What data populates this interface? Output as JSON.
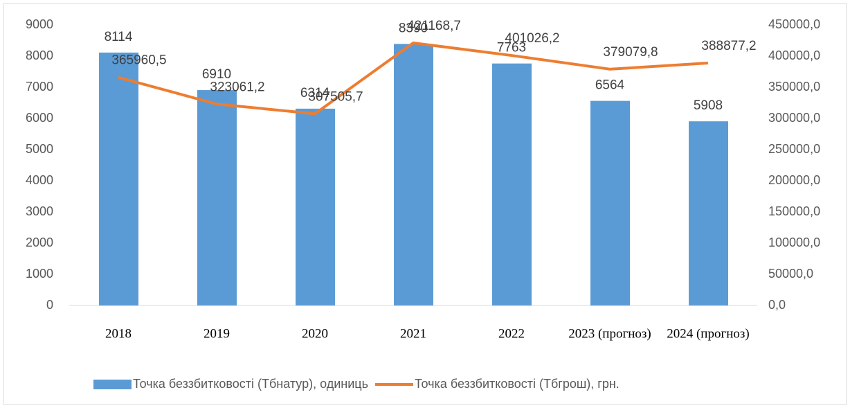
{
  "chart_data": {
    "type": "bar_line",
    "categories": [
      "2018",
      "2019",
      "2020",
      "2021",
      "2022",
      "2023 (прогноз)",
      "2024 (прогноз)"
    ],
    "series": [
      {
        "name": "Точка беззбитковості (Тбнатур), одиниць",
        "color": "#5b9bd5",
        "type": "bar",
        "values": [
          8114,
          6910,
          6314,
          8390,
          7763,
          6564,
          5908
        ]
      },
      {
        "name": "Точка беззбитковості (Тбгрош), грн.",
        "color": "#ed7d31",
        "type": "line",
        "axis": "y2",
        "values": [
          365960.5,
          323061.2,
          307505.7,
          421168.7,
          401026.2,
          379079.8,
          388877.2
        ],
        "value_labels": [
          "365960,5",
          "323061,2",
          "307505,7",
          "421168,7",
          "401026,2",
          "379079,8",
          "388877,2"
        ]
      }
    ],
    "ylim": [
      0,
      9000
    ],
    "yticks": [
      0,
      1000,
      2000,
      3000,
      4000,
      5000,
      6000,
      7000,
      8000,
      9000
    ],
    "y2lim": [
      0,
      450000
    ],
    "y2ticks": [
      {
        "value": 0,
        "label": "0,0"
      },
      {
        "value": 50000,
        "label": "50000,0"
      },
      {
        "value": 100000,
        "label": "100000,0"
      },
      {
        "value": 150000,
        "label": "150000,0"
      },
      {
        "value": 200000,
        "label": "200000,0"
      },
      {
        "value": 250000,
        "label": "250000,0"
      },
      {
        "value": 300000,
        "label": "300000,0"
      },
      {
        "value": 350000,
        "label": "350000,0"
      },
      {
        "value": 400000,
        "label": "400000,0"
      },
      {
        "value": 450000,
        "label": "450000,0"
      }
    ],
    "legend": "bottom"
  }
}
